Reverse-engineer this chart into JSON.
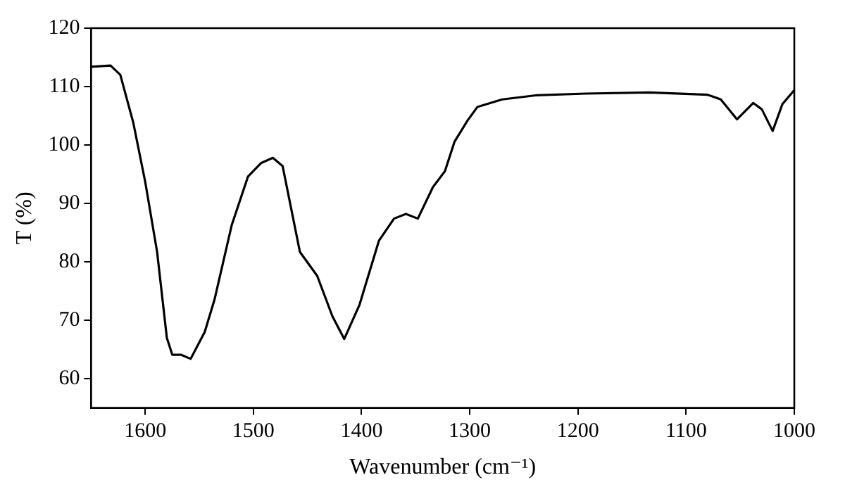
{
  "chart_data": {
    "type": "line",
    "xlabel": "Wavenumber (cm⁻¹)",
    "ylabel": "T (%)",
    "xlim": [
      1650,
      1000
    ],
    "xticks": [
      1600,
      1500,
      1400,
      1300,
      1200,
      1100,
      1000
    ],
    "ylim": [
      55,
      120
    ],
    "yticks": [
      60,
      70,
      80,
      90,
      100,
      110,
      120
    ],
    "grid": false,
    "legend": false,
    "marker": "none",
    "line_style": "solid",
    "series": [
      {
        "color": "#000000",
        "x": [
          1650,
          1632,
          1623,
          1611,
          1600,
          1589,
          1580,
          1575,
          1567,
          1558,
          1545,
          1536,
          1520,
          1505,
          1493,
          1482,
          1473,
          1457,
          1441,
          1427,
          1416,
          1402,
          1384,
          1370,
          1359,
          1348,
          1334,
          1323,
          1314,
          1302,
          1293,
          1270,
          1239,
          1193,
          1134,
          1080,
          1068,
          1053,
          1038,
          1030,
          1020,
          1011,
          1000
        ],
        "values": [
          113.4,
          113.6,
          112,
          103.8,
          93.7,
          81.7,
          67,
          64.1,
          64.1,
          63.4,
          68,
          73.5,
          86.3,
          94.6,
          96.9,
          97.8,
          96.4,
          81.7,
          77.6,
          70.7,
          66.8,
          72.6,
          83.6,
          87.4,
          88.2,
          87.4,
          92.8,
          95.5,
          100.6,
          104.2,
          106.5,
          107.8,
          108.5,
          108.8,
          109,
          108.6,
          107.8,
          104.4,
          107.2,
          106.1,
          102.4,
          107,
          109.4
        ]
      }
    ]
  }
}
